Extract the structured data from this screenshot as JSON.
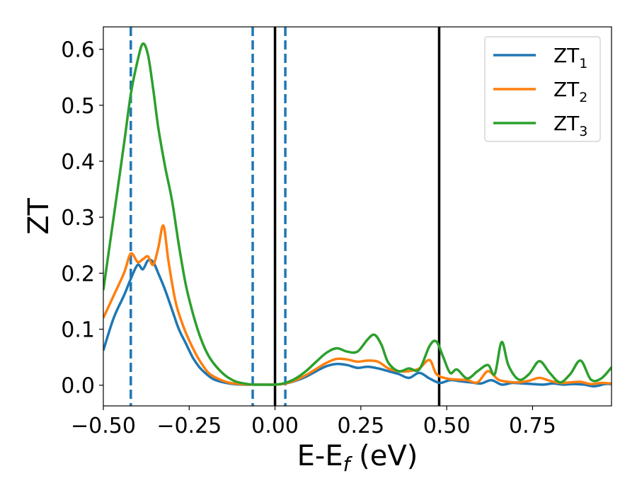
{
  "chart_data": {
    "type": "line",
    "title": "",
    "xlabel_main": "E-E",
    "xlabel_sub": "f",
    "xlabel_unit": " (eV)",
    "ylabel": "ZT",
    "xlim": [
      -0.5,
      0.98
    ],
    "ylim": [
      -0.037,
      0.64
    ],
    "xticks": [
      -0.5,
      -0.25,
      0.0,
      0.25,
      0.5,
      0.75
    ],
    "xtick_labels": [
      "−0.50",
      "−0.25",
      "0.00",
      "0.25",
      "0.50",
      "0.75"
    ],
    "yticks": [
      0.0,
      0.1,
      0.2,
      0.3,
      0.4,
      0.5,
      0.6
    ],
    "ytick_labels": [
      "0.0",
      "0.1",
      "0.2",
      "0.3",
      "0.4",
      "0.5",
      "0.6"
    ],
    "grid": false,
    "legend_position": "top-right",
    "vlines_dashed": {
      "x": [
        -0.42,
        -0.065,
        0.03
      ],
      "color": "#1f77b4"
    },
    "vlines_solid": {
      "x": [
        0.0,
        0.478
      ],
      "color": "#000000"
    },
    "series": [
      {
        "name": "ZT",
        "name_sub": "1",
        "color": "#1f77b4",
        "x": [
          -0.5,
          -0.47,
          -0.44,
          -0.42,
          -0.4,
          -0.385,
          -0.37,
          -0.355,
          -0.34,
          -0.32,
          -0.3,
          -0.28,
          -0.26,
          -0.24,
          -0.22,
          -0.2,
          -0.18,
          -0.15,
          -0.12,
          -0.09,
          -0.06,
          -0.03,
          0.0,
          0.03,
          0.06,
          0.09,
          0.12,
          0.15,
          0.18,
          0.21,
          0.24,
          0.27,
          0.3,
          0.33,
          0.36,
          0.39,
          0.42,
          0.45,
          0.48,
          0.51,
          0.54,
          0.57,
          0.6,
          0.63,
          0.66,
          0.69,
          0.72,
          0.75,
          0.78,
          0.81,
          0.84,
          0.87,
          0.9,
          0.93,
          0.96,
          0.98
        ],
        "y": [
          0.062,
          0.12,
          0.16,
          0.19,
          0.215,
          0.207,
          0.223,
          0.22,
          0.2,
          0.17,
          0.135,
          0.1,
          0.075,
          0.05,
          0.032,
          0.02,
          0.011,
          0.005,
          0.002,
          0.001,
          0.001,
          0.001,
          0.001,
          0.003,
          0.008,
          0.015,
          0.025,
          0.034,
          0.038,
          0.036,
          0.031,
          0.033,
          0.03,
          0.025,
          0.02,
          0.013,
          0.022,
          0.012,
          0.004,
          0.009,
          0.007,
          0.005,
          0.003,
          0.009,
          0.001,
          0.004,
          0.003,
          0.002,
          0.001,
          0.003,
          0.001,
          0.002,
          0.001,
          -0.002,
          0.002,
          0.002
        ]
      },
      {
        "name": "ZT",
        "name_sub": "2",
        "color": "#ff7f0e",
        "x": [
          -0.5,
          -0.47,
          -0.44,
          -0.42,
          -0.4,
          -0.385,
          -0.37,
          -0.355,
          -0.34,
          -0.325,
          -0.31,
          -0.29,
          -0.27,
          -0.25,
          -0.23,
          -0.21,
          -0.19,
          -0.16,
          -0.13,
          -0.1,
          -0.07,
          -0.04,
          0.0,
          0.03,
          0.06,
          0.09,
          0.12,
          0.15,
          0.18,
          0.21,
          0.24,
          0.27,
          0.3,
          0.33,
          0.36,
          0.39,
          0.42,
          0.45,
          0.47,
          0.5,
          0.53,
          0.56,
          0.59,
          0.62,
          0.65,
          0.68,
          0.71,
          0.74,
          0.77,
          0.8,
          0.83,
          0.86,
          0.89,
          0.92,
          0.95,
          0.98
        ],
        "y": [
          0.12,
          0.16,
          0.2,
          0.235,
          0.22,
          0.225,
          0.23,
          0.215,
          0.245,
          0.285,
          0.22,
          0.15,
          0.11,
          0.08,
          0.055,
          0.035,
          0.02,
          0.01,
          0.004,
          0.002,
          0.001,
          0.001,
          0.001,
          0.003,
          0.009,
          0.018,
          0.029,
          0.04,
          0.047,
          0.046,
          0.042,
          0.044,
          0.042,
          0.03,
          0.025,
          0.025,
          0.03,
          0.045,
          0.02,
          0.012,
          0.01,
          0.009,
          0.005,
          0.025,
          0.01,
          0.006,
          0.005,
          0.008,
          0.013,
          0.008,
          0.004,
          0.005,
          0.006,
          0.002,
          0.004,
          0.003
        ]
      },
      {
        "name": "ZT",
        "name_sub": "3",
        "color": "#2ca02c",
        "x": [
          -0.5,
          -0.47,
          -0.44,
          -0.42,
          -0.4,
          -0.385,
          -0.37,
          -0.355,
          -0.34,
          -0.32,
          -0.3,
          -0.28,
          -0.26,
          -0.24,
          -0.22,
          -0.2,
          -0.18,
          -0.15,
          -0.12,
          -0.09,
          -0.06,
          -0.03,
          0.0,
          0.03,
          0.06,
          0.09,
          0.12,
          0.15,
          0.18,
          0.21,
          0.24,
          0.27,
          0.29,
          0.31,
          0.33,
          0.36,
          0.39,
          0.42,
          0.45,
          0.47,
          0.49,
          0.51,
          0.53,
          0.56,
          0.59,
          0.62,
          0.64,
          0.66,
          0.68,
          0.71,
          0.74,
          0.77,
          0.8,
          0.83,
          0.86,
          0.89,
          0.92,
          0.95,
          0.98
        ],
        "y": [
          0.17,
          0.3,
          0.43,
          0.52,
          0.58,
          0.61,
          0.59,
          0.53,
          0.46,
          0.39,
          0.33,
          0.25,
          0.18,
          0.13,
          0.09,
          0.06,
          0.04,
          0.02,
          0.008,
          0.003,
          0.001,
          0.001,
          0.001,
          0.004,
          0.012,
          0.025,
          0.042,
          0.058,
          0.066,
          0.06,
          0.06,
          0.082,
          0.09,
          0.072,
          0.04,
          0.025,
          0.03,
          0.028,
          0.07,
          0.078,
          0.05,
          0.022,
          0.028,
          0.012,
          0.025,
          0.036,
          0.02,
          0.077,
          0.035,
          0.01,
          0.02,
          0.043,
          0.022,
          0.005,
          0.02,
          0.044,
          0.01,
          0.012,
          0.032
        ]
      }
    ]
  }
}
